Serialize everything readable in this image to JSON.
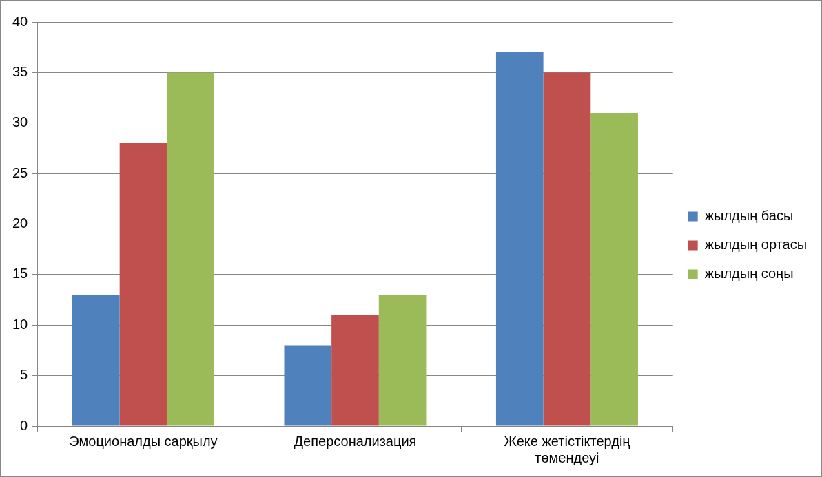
{
  "chart_data": {
    "type": "bar",
    "categories": [
      "Эмоционалды сарқылу",
      "Деперсонализация",
      "Жеке жетістіктердің төмендеуі"
    ],
    "series": [
      {
        "name": "жылдың басы",
        "color": "#4f81bd",
        "values": [
          13,
          8,
          37
        ]
      },
      {
        "name": "жылдың ортасы",
        "color": "#c0504d",
        "values": [
          28,
          11,
          35
        ]
      },
      {
        "name": "жылдың соңы",
        "color": "#9bbb59",
        "values": [
          35,
          13,
          31
        ]
      }
    ],
    "ylim": [
      0,
      40
    ],
    "yticks": [
      0,
      5,
      10,
      15,
      20,
      25,
      30,
      35,
      40
    ],
    "grid": "y",
    "legend": "right"
  }
}
